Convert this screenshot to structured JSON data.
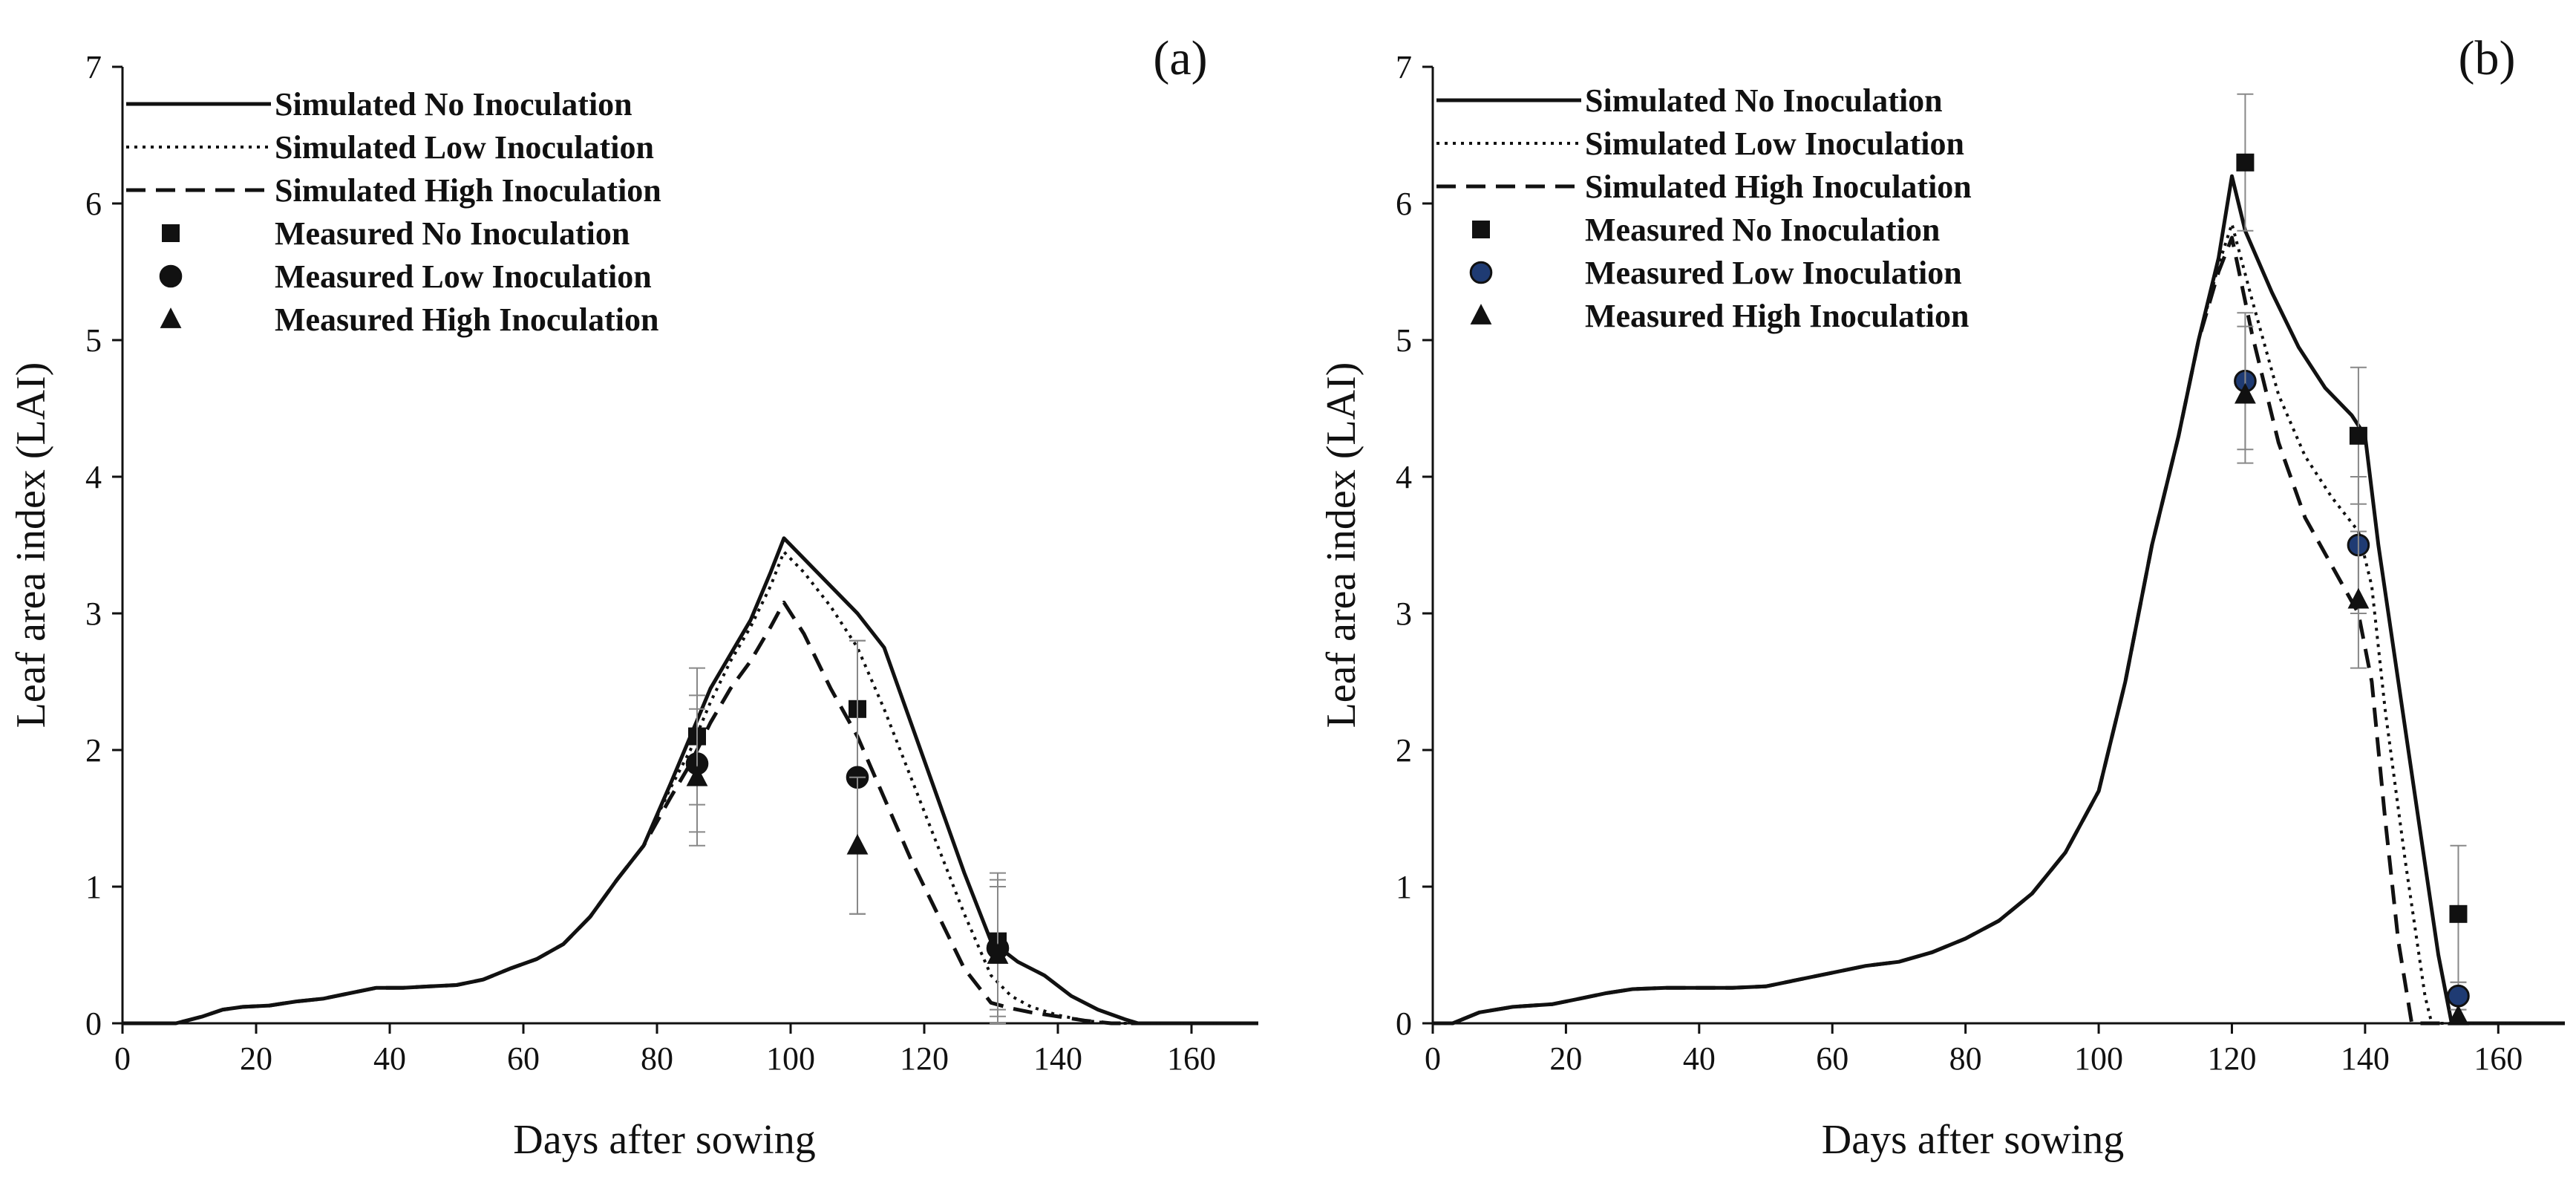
{
  "chart_data": [
    {
      "type": "line",
      "panel_label": "(a)",
      "xlabel": "Days after sowing",
      "ylabel": "Leaf area index (LAI)",
      "xlim": [
        0,
        170
      ],
      "ylim": [
        0,
        7
      ],
      "xticks": [
        0,
        20,
        40,
        60,
        80,
        100,
        120,
        140,
        160
      ],
      "yticks": [
        0,
        1,
        2,
        3,
        4,
        5,
        6,
        7
      ],
      "grid": false,
      "legend_position": "top-left",
      "legend": [
        "Simulated No Inoculation",
        "Simulated Low Inoculation",
        "Simulated High Inoculation",
        "Measured No Inoculation",
        "Measured Low Inoculation",
        "Measured High Inoculation"
      ],
      "series": [
        {
          "name": "Simulated No Inoculation",
          "kind": "line",
          "style": "solid",
          "x": [
            0,
            8,
            12,
            15,
            18,
            22,
            26,
            30,
            34,
            38,
            42,
            46,
            50,
            54,
            58,
            62,
            66,
            70,
            74,
            78,
            82,
            85,
            88,
            91,
            94,
            97,
            99,
            102,
            106,
            110,
            114,
            118,
            122,
            126,
            130,
            134,
            138,
            142,
            146,
            150,
            152,
            170
          ],
          "y": [
            0,
            0,
            0.05,
            0.1,
            0.12,
            0.13,
            0.16,
            0.18,
            0.22,
            0.26,
            0.26,
            0.27,
            0.28,
            0.32,
            0.4,
            0.47,
            0.58,
            0.78,
            1.05,
            1.3,
            1.75,
            2.1,
            2.45,
            2.7,
            2.95,
            3.3,
            3.55,
            3.4,
            3.2,
            3.0,
            2.75,
            2.2,
            1.65,
            1.1,
            0.6,
            0.45,
            0.35,
            0.2,
            0.1,
            0.03,
            0,
            0
          ]
        },
        {
          "name": "Simulated Low Inoculation",
          "kind": "line",
          "style": "dotted",
          "x": [
            0,
            8,
            12,
            15,
            18,
            22,
            26,
            30,
            34,
            38,
            42,
            46,
            50,
            54,
            58,
            62,
            66,
            70,
            74,
            78,
            82,
            85,
            88,
            91,
            94,
            97,
            99,
            102,
            106,
            110,
            114,
            118,
            122,
            126,
            130,
            133,
            136,
            140,
            144,
            148,
            170
          ],
          "y": [
            0,
            0,
            0.05,
            0.1,
            0.12,
            0.13,
            0.16,
            0.18,
            0.22,
            0.26,
            0.26,
            0.27,
            0.28,
            0.32,
            0.4,
            0.47,
            0.58,
            0.78,
            1.05,
            1.3,
            1.72,
            2.0,
            2.35,
            2.65,
            2.9,
            3.2,
            3.45,
            3.3,
            3.05,
            2.75,
            2.3,
            1.8,
            1.3,
            0.8,
            0.35,
            0.2,
            0.12,
            0.06,
            0.02,
            0,
            0
          ]
        },
        {
          "name": "Simulated High Inoculation",
          "kind": "line",
          "style": "dashed",
          "x": [
            0,
            8,
            12,
            15,
            18,
            22,
            26,
            30,
            34,
            38,
            42,
            46,
            50,
            54,
            58,
            62,
            66,
            70,
            74,
            78,
            82,
            85,
            88,
            91,
            94,
            97,
            99,
            102,
            106,
            110,
            114,
            118,
            122,
            126,
            130,
            133,
            136,
            140,
            144,
            148,
            170
          ],
          "y": [
            0,
            0,
            0.05,
            0.1,
            0.12,
            0.13,
            0.16,
            0.18,
            0.22,
            0.26,
            0.26,
            0.27,
            0.28,
            0.32,
            0.4,
            0.47,
            0.58,
            0.78,
            1.05,
            1.3,
            1.65,
            1.9,
            2.2,
            2.45,
            2.65,
            2.9,
            3.08,
            2.85,
            2.45,
            2.1,
            1.65,
            1.2,
            0.8,
            0.4,
            0.15,
            0.11,
            0.08,
            0.05,
            0.02,
            0,
            0
          ]
        },
        {
          "name": "Measured No Inoculation",
          "kind": "scatter",
          "marker": "square",
          "x": [
            86,
            110,
            131
          ],
          "y": [
            2.1,
            2.3,
            0.6
          ],
          "err": [
            0.5,
            0.5,
            0.5
          ]
        },
        {
          "name": "Measured Low Inoculation",
          "kind": "scatter",
          "marker": "circle",
          "x": [
            86,
            110,
            131
          ],
          "y": [
            1.9,
            1.8,
            0.55
          ],
          "err": [
            0.5,
            1.0,
            0.5
          ]
        },
        {
          "name": "Measured High Inoculation",
          "kind": "scatter",
          "marker": "triangle",
          "x": [
            86,
            110,
            131
          ],
          "y": [
            1.8,
            1.3,
            0.5
          ],
          "err": [
            0.5,
            0.5,
            0.5
          ]
        }
      ]
    },
    {
      "type": "line",
      "panel_label": "(b)",
      "xlabel": "Days after sowing",
      "ylabel": "Leaf area index (LAI)",
      "xlim": [
        0,
        170
      ],
      "ylim": [
        0,
        7
      ],
      "xticks": [
        0,
        20,
        40,
        60,
        80,
        100,
        120,
        140,
        160
      ],
      "yticks": [
        0,
        1,
        2,
        3,
        4,
        5,
        6,
        7
      ],
      "grid": false,
      "legend_position": "top-left",
      "legend": [
        "Simulated No Inoculation",
        "Simulated Low Inoculation",
        "Simulated High Inoculation",
        "Measured No Inoculation",
        "Measured Low Inoculation",
        "Measured High Inoculation"
      ],
      "series": [
        {
          "name": "Simulated No Inoculation",
          "kind": "line",
          "style": "solid",
          "x": [
            0,
            3,
            7,
            12,
            18,
            22,
            26,
            30,
            35,
            40,
            45,
            50,
            55,
            60,
            65,
            70,
            75,
            80,
            85,
            90,
            95,
            100,
            104,
            108,
            112,
            115,
            118,
            120,
            122,
            126,
            130,
            134,
            138,
            140,
            142,
            145,
            148,
            151,
            153,
            170
          ],
          "y": [
            0,
            0,
            0.08,
            0.12,
            0.14,
            0.18,
            0.22,
            0.25,
            0.26,
            0.26,
            0.26,
            0.27,
            0.32,
            0.37,
            0.42,
            0.45,
            0.52,
            0.62,
            0.75,
            0.95,
            1.25,
            1.7,
            2.5,
            3.5,
            4.3,
            5.0,
            5.6,
            6.2,
            5.8,
            5.35,
            4.95,
            4.65,
            4.45,
            4.3,
            3.5,
            2.5,
            1.5,
            0.5,
            0,
            0
          ]
        },
        {
          "name": "Simulated Low Inoculation",
          "kind": "line",
          "style": "dotted",
          "x": [
            0,
            3,
            7,
            12,
            18,
            22,
            26,
            30,
            35,
            40,
            45,
            50,
            55,
            60,
            65,
            70,
            75,
            80,
            85,
            90,
            95,
            100,
            104,
            108,
            112,
            115,
            118,
            120,
            123,
            127,
            131,
            135,
            139,
            141,
            143,
            146,
            149,
            150,
            170
          ],
          "y": [
            0,
            0,
            0.08,
            0.12,
            0.14,
            0.18,
            0.22,
            0.25,
            0.26,
            0.26,
            0.26,
            0.27,
            0.32,
            0.37,
            0.42,
            0.45,
            0.52,
            0.62,
            0.75,
            0.95,
            1.25,
            1.7,
            2.5,
            3.5,
            4.3,
            5.0,
            5.55,
            5.85,
            5.3,
            4.6,
            4.15,
            3.85,
            3.6,
            3.2,
            2.3,
            1.2,
            0.2,
            0,
            0
          ]
        },
        {
          "name": "Simulated High Inoculation",
          "kind": "line",
          "style": "dashed",
          "x": [
            0,
            3,
            7,
            12,
            18,
            22,
            26,
            30,
            35,
            40,
            45,
            50,
            55,
            60,
            65,
            70,
            75,
            80,
            85,
            90,
            95,
            100,
            104,
            108,
            112,
            115,
            118,
            120,
            123,
            127,
            131,
            135,
            139,
            141,
            143,
            145,
            147,
            170
          ],
          "y": [
            0,
            0,
            0.08,
            0.12,
            0.14,
            0.18,
            0.22,
            0.25,
            0.26,
            0.26,
            0.26,
            0.27,
            0.32,
            0.37,
            0.42,
            0.45,
            0.52,
            0.62,
            0.75,
            0.95,
            1.25,
            1.7,
            2.5,
            3.5,
            4.3,
            5.0,
            5.5,
            5.75,
            5.05,
            4.25,
            3.7,
            3.35,
            3.0,
            2.5,
            1.5,
            0.6,
            0,
            0
          ]
        },
        {
          "name": "Measured No Inoculation",
          "kind": "scatter",
          "marker": "square",
          "x": [
            122,
            139,
            154
          ],
          "y": [
            6.3,
            4.3,
            0.8
          ],
          "err": [
            0.5,
            0.5,
            0.5
          ]
        },
        {
          "name": "Measured Low Inoculation",
          "kind": "scatter",
          "marker": "circle",
          "x": [
            122,
            139,
            154
          ],
          "y": [
            4.7,
            3.5,
            0.2
          ],
          "err": [
            0.5,
            0.5,
            0.1
          ]
        },
        {
          "name": "Measured High Inoculation",
          "kind": "scatter",
          "marker": "triangle",
          "x": [
            122,
            139,
            154
          ],
          "y": [
            4.6,
            3.1,
            0.05
          ],
          "err": [
            0.5,
            0.5,
            0.05
          ]
        }
      ]
    }
  ]
}
